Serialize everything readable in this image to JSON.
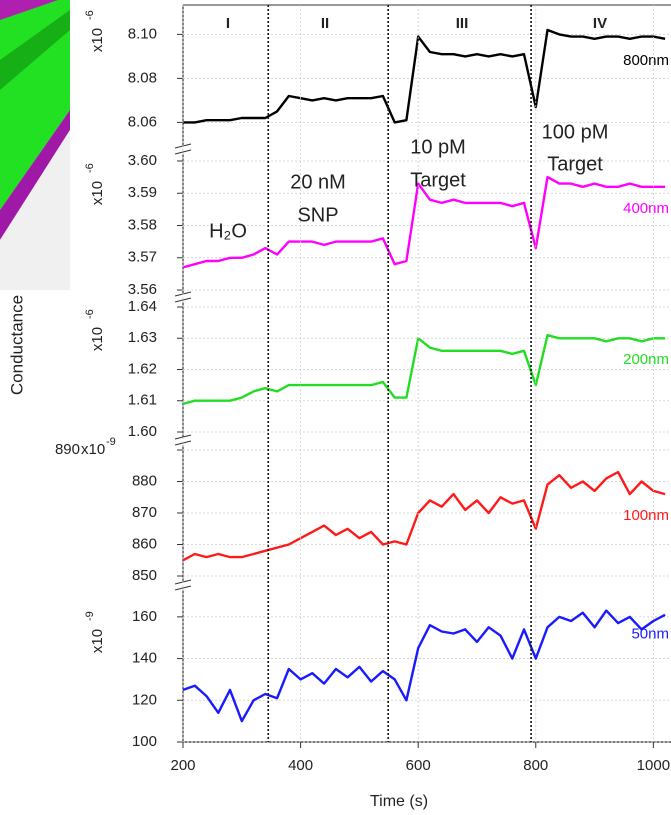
{
  "ylabel": "Conductance",
  "phases": {
    "boundaries": [
      345,
      549,
      792
    ],
    "labels": [
      "I",
      "II",
      "III",
      "IV"
    ]
  },
  "annotations": [
    "H₂O",
    "20 nM",
    "SNP",
    "10 pM",
    "Target",
    "100 pM",
    "Target"
  ],
  "chart_data": [
    {
      "type": "line",
      "grid": true,
      "xlim": [
        200,
        1030
      ],
      "ylim": [
        8.052,
        8.112
      ],
      "yticks": [
        8.06,
        8.08,
        {
          "value": 8.1,
          "label": "8.10"
        }
      ],
      "unit_label": {
        "base": "x10",
        "exponent": "-6"
      },
      "x": [
        200,
        220,
        240,
        260,
        280,
        300,
        320,
        340,
        360,
        380,
        400,
        420,
        440,
        460,
        480,
        500,
        520,
        540,
        560,
        580,
        600,
        620,
        640,
        660,
        680,
        700,
        720,
        740,
        760,
        780,
        800,
        820,
        840,
        860,
        880,
        900,
        920,
        940,
        960,
        980,
        1000,
        1020
      ],
      "series": [
        {
          "name": "800nm",
          "color": "#000000",
          "values": [
            8.06,
            8.06,
            8.061,
            8.061,
            8.061,
            8.062,
            8.062,
            8.062,
            8.065,
            8.072,
            8.071,
            8.07,
            8.071,
            8.07,
            8.071,
            8.071,
            8.071,
            8.072,
            8.06,
            8.061,
            8.099,
            8.092,
            8.091,
            8.091,
            8.09,
            8.091,
            8.09,
            8.091,
            8.09,
            8.091,
            8.067,
            8.102,
            8.1,
            8.099,
            8.099,
            8.098,
            8.099,
            8.099,
            8.098,
            8.099,
            8.099,
            8.098
          ]
        }
      ]
    },
    {
      "type": "line",
      "grid": true,
      "xlim": [
        200,
        1030
      ],
      "ylim": [
        3.56,
        3.6
      ],
      "yticks": [
        3.56,
        3.57,
        3.58,
        3.59,
        {
          "value": 3.6,
          "label": "3.60"
        }
      ],
      "unit_label": {
        "base": "x10",
        "exponent": "-6"
      },
      "x": [
        200,
        220,
        240,
        260,
        280,
        300,
        320,
        340,
        360,
        380,
        400,
        420,
        440,
        460,
        480,
        500,
        520,
        540,
        560,
        580,
        600,
        620,
        640,
        660,
        680,
        700,
        720,
        740,
        760,
        780,
        800,
        820,
        840,
        860,
        880,
        900,
        920,
        940,
        960,
        980,
        1000,
        1020
      ],
      "series": [
        {
          "name": "400nm",
          "color": "#ff00ff",
          "values": [
            3.567,
            3.568,
            3.569,
            3.569,
            3.57,
            3.57,
            3.571,
            3.573,
            3.571,
            3.575,
            3.575,
            3.575,
            3.574,
            3.575,
            3.575,
            3.575,
            3.575,
            3.576,
            3.568,
            3.569,
            3.593,
            3.588,
            3.587,
            3.588,
            3.587,
            3.587,
            3.587,
            3.587,
            3.586,
            3.587,
            3.573,
            3.595,
            3.593,
            3.593,
            3.592,
            3.593,
            3.592,
            3.592,
            3.593,
            3.592,
            3.592,
            3.592
          ]
        }
      ]
    },
    {
      "type": "line",
      "grid": true,
      "xlim": [
        200,
        1030
      ],
      "ylim": [
        1.6,
        1.64
      ],
      "yticks": [
        {
          "value": 1.6,
          "label": "1.60"
        },
        1.61,
        1.62,
        1.63,
        1.64
      ],
      "unit_label": {
        "base": "x10",
        "exponent": "-6"
      },
      "x": [
        200,
        220,
        240,
        260,
        280,
        300,
        320,
        340,
        360,
        380,
        400,
        420,
        440,
        460,
        480,
        500,
        520,
        540,
        560,
        580,
        600,
        620,
        640,
        660,
        680,
        700,
        720,
        740,
        760,
        780,
        800,
        820,
        840,
        860,
        880,
        900,
        920,
        940,
        960,
        980,
        1000,
        1020
      ],
      "series": [
        {
          "name": "200nm",
          "color": "#22dd22",
          "values": [
            1.609,
            1.61,
            1.61,
            1.61,
            1.61,
            1.611,
            1.613,
            1.614,
            1.613,
            1.615,
            1.615,
            1.615,
            1.615,
            1.615,
            1.615,
            1.615,
            1.615,
            1.616,
            1.611,
            1.611,
            1.63,
            1.627,
            1.626,
            1.626,
            1.626,
            1.626,
            1.626,
            1.626,
            1.625,
            1.626,
            1.615,
            1.631,
            1.63,
            1.63,
            1.63,
            1.63,
            1.629,
            1.63,
            1.63,
            1.629,
            1.63,
            1.63
          ]
        }
      ]
    },
    {
      "type": "line",
      "grid": true,
      "xlim": [
        200,
        1030
      ],
      "ylim": [
        850,
        890
      ],
      "yticks": [
        850,
        860,
        870,
        880,
        890
      ],
      "unit_label": {
        "base": "x10",
        "exponent": "-9"
      },
      "x": [
        200,
        220,
        240,
        260,
        280,
        300,
        320,
        340,
        360,
        380,
        400,
        420,
        440,
        460,
        480,
        500,
        520,
        540,
        560,
        580,
        600,
        620,
        640,
        660,
        680,
        700,
        720,
        740,
        760,
        780,
        800,
        820,
        840,
        860,
        880,
        900,
        920,
        940,
        960,
        980,
        1000,
        1020
      ],
      "series": [
        {
          "name": "100nm",
          "color": "#ff1a1a",
          "values": [
            855,
            857,
            856,
            857,
            856,
            856,
            857,
            858,
            859,
            860,
            862,
            864,
            866,
            863,
            865,
            862,
            864,
            860,
            861,
            860,
            870,
            874,
            872,
            876,
            871,
            874,
            870,
            875,
            873,
            874,
            865,
            879,
            882,
            878,
            880,
            877,
            881,
            883,
            876,
            880,
            877,
            876
          ]
        }
      ]
    },
    {
      "type": "line",
      "grid": true,
      "xlim": [
        200,
        1030
      ],
      "ylim": [
        100,
        170
      ],
      "yticks": [
        100,
        120,
        140,
        160
      ],
      "unit_label": {
        "base": "x10",
        "exponent": "-9"
      },
      "xticks": [
        200,
        400,
        600,
        800,
        1000
      ],
      "xlabel": "Time (s)",
      "x": [
        200,
        220,
        240,
        260,
        280,
        300,
        320,
        340,
        360,
        380,
        400,
        420,
        440,
        460,
        480,
        500,
        520,
        540,
        560,
        580,
        600,
        620,
        640,
        660,
        680,
        700,
        720,
        740,
        760,
        780,
        800,
        820,
        840,
        860,
        880,
        900,
        920,
        940,
        960,
        980,
        1000,
        1020
      ],
      "series": [
        {
          "name": "50nm",
          "color": "#1a1aff",
          "values": [
            125,
            127,
            122,
            114,
            125,
            110,
            120,
            123,
            121,
            135,
            130,
            133,
            128,
            135,
            131,
            136,
            129,
            134,
            130,
            120,
            145,
            156,
            153,
            152,
            154,
            148,
            155,
            151,
            140,
            154,
            140,
            155,
            160,
            158,
            162,
            155,
            163,
            157,
            160,
            154,
            158,
            161
          ]
        }
      ]
    }
  ]
}
